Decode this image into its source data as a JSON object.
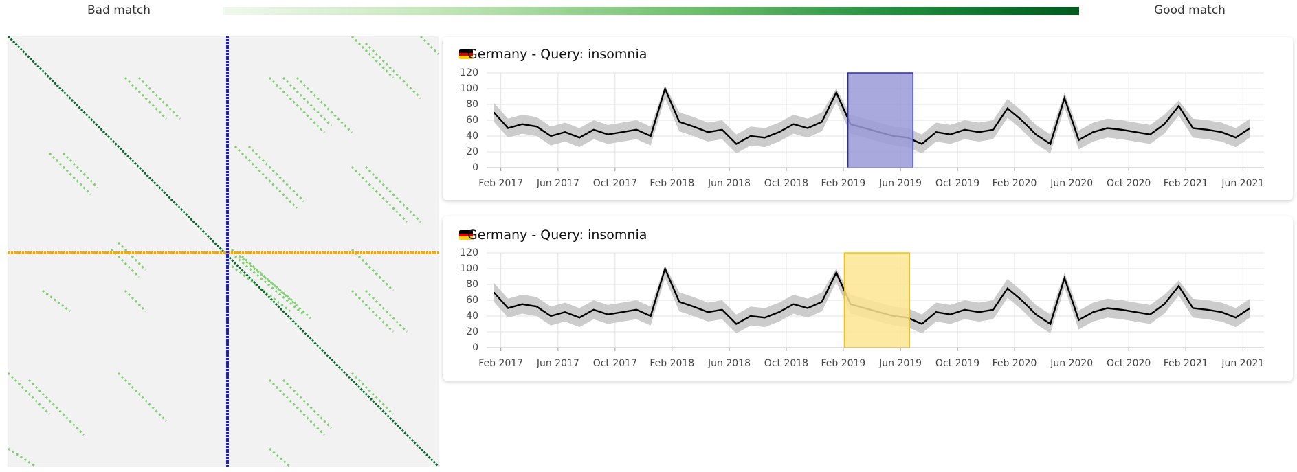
{
  "header": {
    "left_label": "Bad match",
    "right_label": "Good match"
  },
  "chart_data": [
    {
      "type": "line",
      "title": "Germany - Query: insomnia",
      "x": [
        2017.042,
        2017.125,
        2017.208,
        2017.292,
        2017.375,
        2017.458,
        2017.542,
        2017.625,
        2017.708,
        2017.792,
        2017.875,
        2017.958,
        2018.042,
        2018.125,
        2018.208,
        2018.292,
        2018.375,
        2018.458,
        2018.542,
        2018.625,
        2018.708,
        2018.792,
        2018.875,
        2018.958,
        2019.042,
        2019.125,
        2019.208,
        2019.292,
        2019.375,
        2019.458,
        2019.542,
        2019.625,
        2019.708,
        2019.792,
        2019.875,
        2019.958,
        2020.042,
        2020.125,
        2020.208,
        2020.292,
        2020.375,
        2020.458,
        2020.542,
        2020.625,
        2020.708,
        2020.792,
        2020.875,
        2020.958,
        2021.042,
        2021.125,
        2021.208,
        2021.292,
        2021.375,
        2021.458
      ],
      "values": [
        70,
        50,
        55,
        52,
        40,
        45,
        38,
        48,
        42,
        45,
        48,
        40,
        100,
        58,
        52,
        45,
        48,
        30,
        40,
        38,
        45,
        55,
        50,
        58,
        95,
        55,
        50,
        45,
        40,
        38,
        30,
        45,
        42,
        48,
        45,
        48,
        75,
        60,
        42,
        30,
        88,
        35,
        45,
        50,
        48,
        45,
        42,
        55,
        78,
        50,
        48,
        45,
        38,
        50
      ],
      "lower": [
        58,
        38,
        43,
        40,
        28,
        33,
        26,
        36,
        30,
        33,
        36,
        28,
        88,
        46,
        40,
        33,
        36,
        18,
        28,
        26,
        33,
        43,
        38,
        46,
        83,
        43,
        38,
        33,
        28,
        26,
        18,
        33,
        30,
        36,
        33,
        36,
        63,
        48,
        30,
        18,
        76,
        23,
        33,
        38,
        36,
        33,
        30,
        43,
        66,
        38,
        36,
        33,
        26,
        38
      ],
      "upper": [
        82,
        62,
        67,
        64,
        52,
        57,
        50,
        60,
        54,
        57,
        60,
        52,
        104,
        70,
        64,
        57,
        60,
        42,
        52,
        50,
        57,
        67,
        62,
        70,
        100,
        67,
        62,
        57,
        52,
        50,
        42,
        57,
        54,
        60,
        57,
        60,
        87,
        72,
        54,
        42,
        95,
        47,
        57,
        62,
        60,
        57,
        54,
        67,
        85,
        62,
        60,
        57,
        50,
        62
      ],
      "color": "#000000",
      "band_color": "#cccccc",
      "highlight": {
        "range": [
          2019.11,
          2019.49
        ],
        "fill": "#9a9ad8",
        "stroke": "#2a2ab8"
      },
      "xlim": [
        2017.0,
        2021.54
      ],
      "ylim": [
        0,
        120
      ],
      "yticks": [
        0,
        20,
        40,
        60,
        80,
        100,
        120
      ],
      "xticks": [
        {
          "value": 2017.083,
          "label": "Feb 2017"
        },
        {
          "value": 2017.417,
          "label": "Jun 2017"
        },
        {
          "value": 2017.75,
          "label": "Oct 2017"
        },
        {
          "value": 2018.083,
          "label": "Feb 2018"
        },
        {
          "value": 2018.417,
          "label": "Jun 2018"
        },
        {
          "value": 2018.75,
          "label": "Oct 2018"
        },
        {
          "value": 2019.083,
          "label": "Feb 2019"
        },
        {
          "value": 2019.417,
          "label": "Jun 2019"
        },
        {
          "value": 2019.75,
          "label": "Oct 2019"
        },
        {
          "value": 2020.083,
          "label": "Feb 2020"
        },
        {
          "value": 2020.417,
          "label": "Jun 2020"
        },
        {
          "value": 2020.75,
          "label": "Oct 2020"
        },
        {
          "value": 2021.083,
          "label": "Feb 2021"
        },
        {
          "value": 2021.417,
          "label": "Jun 2021"
        }
      ],
      "grid": true
    },
    {
      "type": "line",
      "title": "Germany - Query: insomnia",
      "x": [
        2017.042,
        2017.125,
        2017.208,
        2017.292,
        2017.375,
        2017.458,
        2017.542,
        2017.625,
        2017.708,
        2017.792,
        2017.875,
        2017.958,
        2018.042,
        2018.125,
        2018.208,
        2018.292,
        2018.375,
        2018.458,
        2018.542,
        2018.625,
        2018.708,
        2018.792,
        2018.875,
        2018.958,
        2019.042,
        2019.125,
        2019.208,
        2019.292,
        2019.375,
        2019.458,
        2019.542,
        2019.625,
        2019.708,
        2019.792,
        2019.875,
        2019.958,
        2020.042,
        2020.125,
        2020.208,
        2020.292,
        2020.375,
        2020.458,
        2020.542,
        2020.625,
        2020.708,
        2020.792,
        2020.875,
        2020.958,
        2021.042,
        2021.125,
        2021.208,
        2021.292,
        2021.375,
        2021.458
      ],
      "values": [
        70,
        50,
        55,
        52,
        40,
        45,
        38,
        48,
        42,
        45,
        48,
        40,
        100,
        58,
        52,
        45,
        48,
        30,
        40,
        38,
        45,
        55,
        50,
        58,
        95,
        55,
        50,
        45,
        40,
        38,
        30,
        45,
        42,
        48,
        45,
        48,
        75,
        60,
        42,
        30,
        88,
        35,
        45,
        50,
        48,
        45,
        42,
        55,
        78,
        50,
        48,
        45,
        38,
        50
      ],
      "lower": [
        58,
        38,
        43,
        40,
        28,
        33,
        26,
        36,
        30,
        33,
        36,
        28,
        88,
        46,
        40,
        33,
        36,
        18,
        28,
        26,
        33,
        43,
        38,
        46,
        83,
        43,
        38,
        33,
        28,
        26,
        18,
        33,
        30,
        36,
        33,
        36,
        63,
        48,
        30,
        18,
        76,
        23,
        33,
        38,
        36,
        33,
        30,
        43,
        66,
        38,
        36,
        33,
        26,
        38
      ],
      "upper": [
        82,
        62,
        67,
        64,
        52,
        57,
        50,
        60,
        54,
        57,
        60,
        52,
        104,
        70,
        64,
        57,
        60,
        42,
        52,
        50,
        57,
        67,
        62,
        70,
        100,
        67,
        62,
        57,
        52,
        50,
        42,
        57,
        54,
        60,
        57,
        60,
        87,
        72,
        54,
        42,
        95,
        47,
        57,
        62,
        60,
        57,
        54,
        67,
        85,
        62,
        60,
        57,
        50,
        62
      ],
      "color": "#000000",
      "band_color": "#cccccc",
      "highlight": {
        "range": [
          2019.09,
          2019.47
        ],
        "fill": "#fde592",
        "stroke": "#f2c300"
      },
      "xlim": [
        2017.0,
        2021.54
      ],
      "ylim": [
        0,
        120
      ],
      "yticks": [
        0,
        20,
        40,
        60,
        80,
        100,
        120
      ],
      "xticks": [
        {
          "value": 2017.083,
          "label": "Feb 2017"
        },
        {
          "value": 2017.417,
          "label": "Jun 2017"
        },
        {
          "value": 2017.75,
          "label": "Oct 2017"
        },
        {
          "value": 2018.083,
          "label": "Feb 2018"
        },
        {
          "value": 2018.417,
          "label": "Jun 2018"
        },
        {
          "value": 2018.75,
          "label": "Oct 2018"
        },
        {
          "value": 2019.083,
          "label": "Feb 2019"
        },
        {
          "value": 2019.417,
          "label": "Jun 2019"
        },
        {
          "value": 2019.75,
          "label": "Oct 2019"
        },
        {
          "value": 2020.083,
          "label": "Feb 2020"
        },
        {
          "value": 2020.417,
          "label": "Jun 2020"
        },
        {
          "value": 2020.75,
          "label": "Oct 2020"
        },
        {
          "value": 2021.083,
          "label": "Feb 2021"
        },
        {
          "value": 2021.417,
          "label": "Jun 2021"
        }
      ],
      "grid": true
    }
  ]
}
